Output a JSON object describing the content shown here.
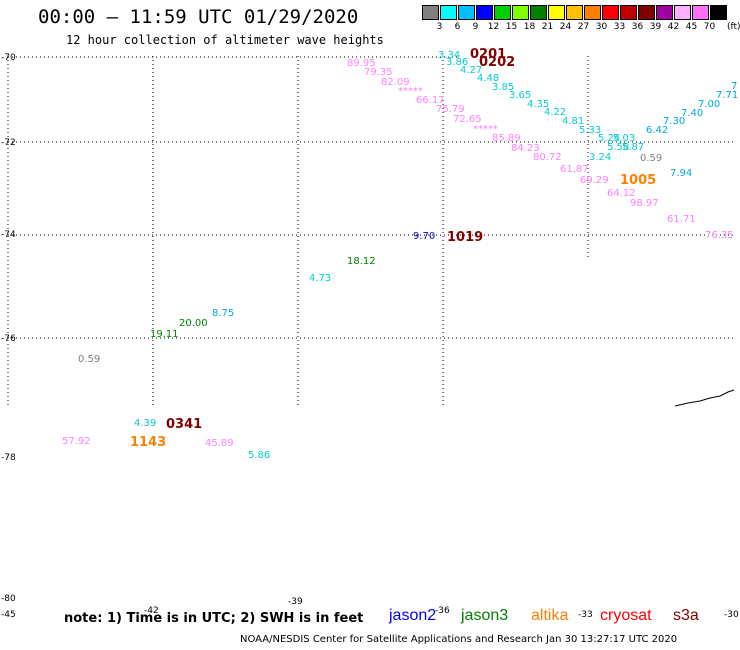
{
  "title": "00:00 – 11:59 UTC 01/29/2020",
  "subtitle": "12 hour collection of altimeter wave heights",
  "legend": {
    "unit": "(ft)",
    "colors": [
      "#808080",
      "#00ffff",
      "#00c0ff",
      "#0000ff",
      "#00d000",
      "#80ff00",
      "#008000",
      "#ffff00",
      "#ffc000",
      "#ff8000",
      "#ff0000",
      "#c00000",
      "#800000",
      "#a000a0",
      "#ffb0ff",
      "#ff70ff",
      "#000000"
    ],
    "labels": [
      "3",
      "6",
      "9",
      "12",
      "15",
      "18",
      "21",
      "24",
      "27",
      "30",
      "33",
      "36",
      "39",
      "42",
      "45",
      "70"
    ]
  },
  "lat_labels": [
    "-70",
    "-72",
    "-74",
    "-76",
    "-78",
    "-80"
  ],
  "lon_labels": [
    "-45",
    "-42",
    "-39",
    "-36",
    "-33",
    "-30"
  ],
  "observations": [
    {
      "text": "89.95",
      "color": "#ff80ff"
    },
    {
      "text": "79.35",
      "color": "#ff80ff"
    },
    {
      "text": "82.09",
      "color": "#ff80ff"
    },
    {
      "text": "*****",
      "color": "#ff80ff"
    },
    {
      "text": "66.17",
      "color": "#ff80ff"
    },
    {
      "text": "75.79",
      "color": "#ff80ff"
    },
    {
      "text": "72.65",
      "color": "#ff80ff"
    },
    {
      "text": "*****",
      "color": "#ff80ff"
    },
    {
      "text": "85.89",
      "color": "#ff80ff"
    },
    {
      "text": "84.23",
      "color": "#ff80ff"
    },
    {
      "text": "80.72",
      "color": "#ff80ff"
    },
    {
      "text": "61.87",
      "color": "#ff80ff"
    },
    {
      "text": "69.29",
      "color": "#ff80ff"
    },
    {
      "text": "64.12",
      "color": "#ff80ff"
    },
    {
      "text": "98.97",
      "color": "#ff80ff"
    },
    {
      "text": "61.71",
      "color": "#ff80ff"
    },
    {
      "text": "76.35",
      "color": "#ff80ff"
    },
    {
      "text": "3.34",
      "color": "#00ced1"
    },
    {
      "text": "3.86",
      "color": "#00ced1"
    },
    {
      "text": "4.27",
      "color": "#00ced1"
    },
    {
      "text": "4.48",
      "color": "#00ced1"
    },
    {
      "text": "3.85",
      "color": "#00ced1"
    },
    {
      "text": "3.65",
      "color": "#00ced1"
    },
    {
      "text": "4.35",
      "color": "#00ced1"
    },
    {
      "text": "4.22",
      "color": "#00ced1"
    },
    {
      "text": "4.81",
      "color": "#00ced1"
    },
    {
      "text": "5.33",
      "color": "#00ced1"
    },
    {
      "text": "5.24",
      "color": "#00ced1"
    },
    {
      "text": "5.03",
      "color": "#00ced1"
    },
    {
      "text": "5.58",
      "color": "#00ced1"
    },
    {
      "text": "5.87",
      "color": "#00ced1"
    },
    {
      "text": "3.24",
      "color": "#00ced1"
    },
    {
      "text": "0.59",
      "color": "#808080"
    },
    {
      "text": "6.42",
      "color": "#00a8e0"
    },
    {
      "text": "7.30",
      "color": "#00a8e0"
    },
    {
      "text": "7.40",
      "color": "#00a8e0"
    },
    {
      "text": "7.00",
      "color": "#00a8e0"
    },
    {
      "text": "7.71",
      "color": "#00a8e0"
    },
    {
      "text": "7",
      "color": "#00a8e0"
    },
    {
      "text": "7.94",
      "color": "#00a8e0"
    },
    {
      "text": "9.70",
      "color": "#0000c0"
    },
    {
      "text": "18.12",
      "color": "#008000"
    },
    {
      "text": "4.73",
      "color": "#00ced1"
    },
    {
      "text": "8.75",
      "color": "#00a8e0"
    },
    {
      "text": "20.00",
      "color": "#008000"
    },
    {
      "text": "19.11",
      "color": "#008000"
    },
    {
      "text": "0.59",
      "color": "#808080"
    },
    {
      "text": "4.39",
      "color": "#00ced1"
    },
    {
      "text": "57.92",
      "color": "#ff80ff"
    },
    {
      "text": "45.89",
      "color": "#ff80ff"
    },
    {
      "text": "5.86",
      "color": "#00ced1"
    }
  ],
  "passes": [
    {
      "text": "0201",
      "color": "#800000"
    },
    {
      "text": "0202",
      "color": "#800000"
    },
    {
      "text": "1005",
      "color": "#ff8000"
    },
    {
      "text": "1019",
      "color": "#800000"
    },
    {
      "text": "0341",
      "color": "#800000"
    },
    {
      "text": "1143",
      "color": "#ff8000"
    }
  ],
  "note": "note: 1) Time is in UTC; 2) SWH is in feet",
  "satellites": [
    {
      "name": "jason2",
      "color": "#0000ff"
    },
    {
      "name": "jason3",
      "color": "#008000"
    },
    {
      "name": "altika",
      "color": "#ff8000"
    },
    {
      "name": "cryosat",
      "color": "#ff0000"
    },
    {
      "name": "s3a",
      "color": "#800000"
    }
  ],
  "footer": "NOAA/NESDIS Center for Satellite Applications and Research    Jan 30 13:27:17 UTC 2020"
}
